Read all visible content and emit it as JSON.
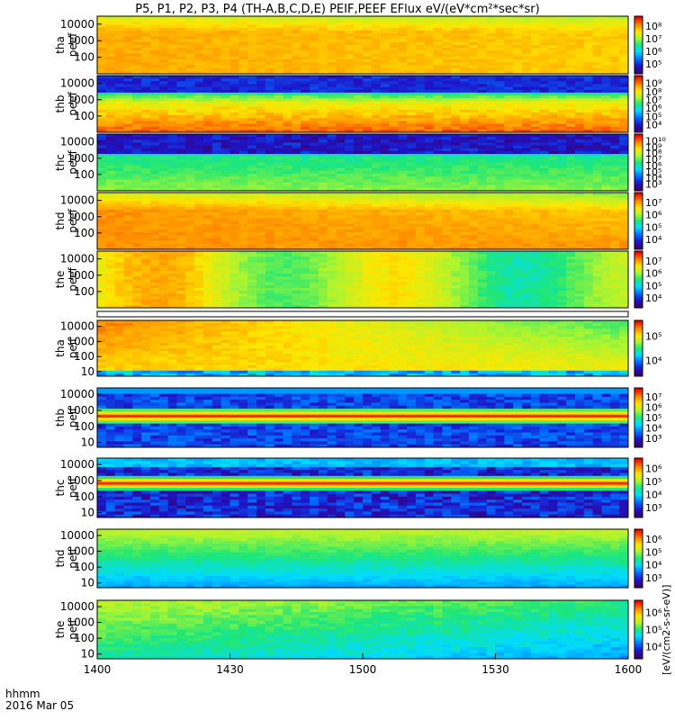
{
  "title": "P5, P1, P2, P3, P4 (TH-A,B,C,D,E) PEIF,PEEF EFlux eV/(eV*cm²*sec*sr)",
  "time_axis": {
    "label_units": "hhmm",
    "label_date": "2016 Mar 05",
    "ticks": [
      "1400",
      "1430",
      "1500",
      "1530",
      "1600"
    ],
    "range": [
      "14:00",
      "16:00"
    ]
  },
  "colorbar_label": "[eV/(cm2-s-sr-eV)]",
  "chart_data": [
    {
      "type": "heatmap",
      "panel": "tha peef",
      "ylabel": [
        "tha",
        "peef"
      ],
      "energy_ticks": [
        "100",
        "1000",
        "10000"
      ],
      "energy_range_eV": [
        10,
        30000
      ],
      "colorbar_ticks": [
        "10⁵",
        "10⁶",
        "10⁷",
        "10⁸"
      ],
      "dominant_levels": [
        0.78,
        0.72
      ]
    },
    {
      "type": "heatmap",
      "panel": "thb peef",
      "ylabel": [
        "thb",
        "peef"
      ],
      "energy_ticks": [
        "100",
        "1000",
        "10000"
      ],
      "energy_range_eV": [
        10,
        30000
      ],
      "colorbar_ticks": [
        "10⁴",
        "10⁵",
        "10⁶",
        "10⁷",
        "10⁸",
        "10⁹"
      ],
      "dominant_levels": [
        0.15,
        0.9
      ]
    },
    {
      "type": "heatmap",
      "panel": "thc peef",
      "ylabel": [
        "thc",
        "peef"
      ],
      "energy_ticks": [
        "100",
        "1000",
        "10000"
      ],
      "energy_range_eV": [
        10,
        30000
      ],
      "colorbar_ticks": [
        "10³",
        "10⁴",
        "10⁵",
        "10⁶",
        "10⁷",
        "10⁸",
        "10⁹",
        "10¹⁰"
      ],
      "dominant_levels": [
        0.1,
        0.55
      ]
    },
    {
      "type": "heatmap",
      "panel": "thd peef",
      "ylabel": [
        "thd",
        "peef"
      ],
      "energy_ticks": [
        "100",
        "1000",
        "10000"
      ],
      "energy_range_eV": [
        10,
        30000
      ],
      "colorbar_ticks": [
        "10⁴",
        "10⁵",
        "10⁶",
        "10⁷"
      ],
      "dominant_levels": [
        0.8,
        0.7
      ]
    },
    {
      "type": "heatmap",
      "panel": "the peef",
      "ylabel": [
        "the",
        "peef"
      ],
      "energy_ticks": [
        "100",
        "1000",
        "10000"
      ],
      "energy_range_eV": [
        10,
        30000
      ],
      "colorbar_ticks": [
        "10⁴",
        "10⁵",
        "10⁶",
        "10⁷"
      ],
      "dominant_levels": [
        0.75,
        0.65
      ]
    },
    {
      "type": "heatmap",
      "panel": "tha peif",
      "ylabel": [
        "tha",
        "peif"
      ],
      "energy_ticks": [
        "10",
        "100",
        "1000",
        "10000"
      ],
      "energy_range_eV": [
        5,
        25000
      ],
      "colorbar_ticks": [
        "10⁴",
        "10⁵"
      ],
      "dominant_levels": [
        0.85,
        0.45
      ]
    },
    {
      "type": "heatmap",
      "panel": "thb peif",
      "ylabel": [
        "thb",
        "peif"
      ],
      "energy_ticks": [
        "10",
        "100",
        "1000",
        "10000"
      ],
      "energy_range_eV": [
        5,
        25000
      ],
      "colorbar_ticks": [
        "10³",
        "10⁴",
        "10⁵",
        "10⁶",
        "10⁷"
      ],
      "dominant_levels": [
        0.15,
        0.9
      ]
    },
    {
      "type": "heatmap",
      "panel": "thc peif",
      "ylabel": [
        "thc",
        "peif"
      ],
      "energy_ticks": [
        "10",
        "100",
        "1000",
        "10000"
      ],
      "energy_range_eV": [
        5,
        25000
      ],
      "colorbar_ticks": [
        "10³",
        "10⁴",
        "10⁵",
        "10⁶"
      ],
      "dominant_levels": [
        0.15,
        0.92
      ]
    },
    {
      "type": "heatmap",
      "panel": "thd peif",
      "ylabel": [
        "thd",
        "peif"
      ],
      "energy_ticks": [
        "10",
        "100",
        "1000",
        "10000"
      ],
      "energy_range_eV": [
        5,
        25000
      ],
      "colorbar_ticks": [
        "10³",
        "10⁴",
        "10⁵",
        "10⁶"
      ],
      "dominant_levels": [
        0.4,
        0.3
      ]
    },
    {
      "type": "heatmap",
      "panel": "the peif",
      "ylabel": [
        "the",
        "peif"
      ],
      "energy_ticks": [
        "10",
        "100",
        "1000",
        "10000"
      ],
      "energy_range_eV": [
        5,
        25000
      ],
      "colorbar_ticks": [
        "10⁴",
        "10⁵",
        "10⁶"
      ],
      "dominant_levels": [
        0.55,
        0.45
      ]
    }
  ]
}
